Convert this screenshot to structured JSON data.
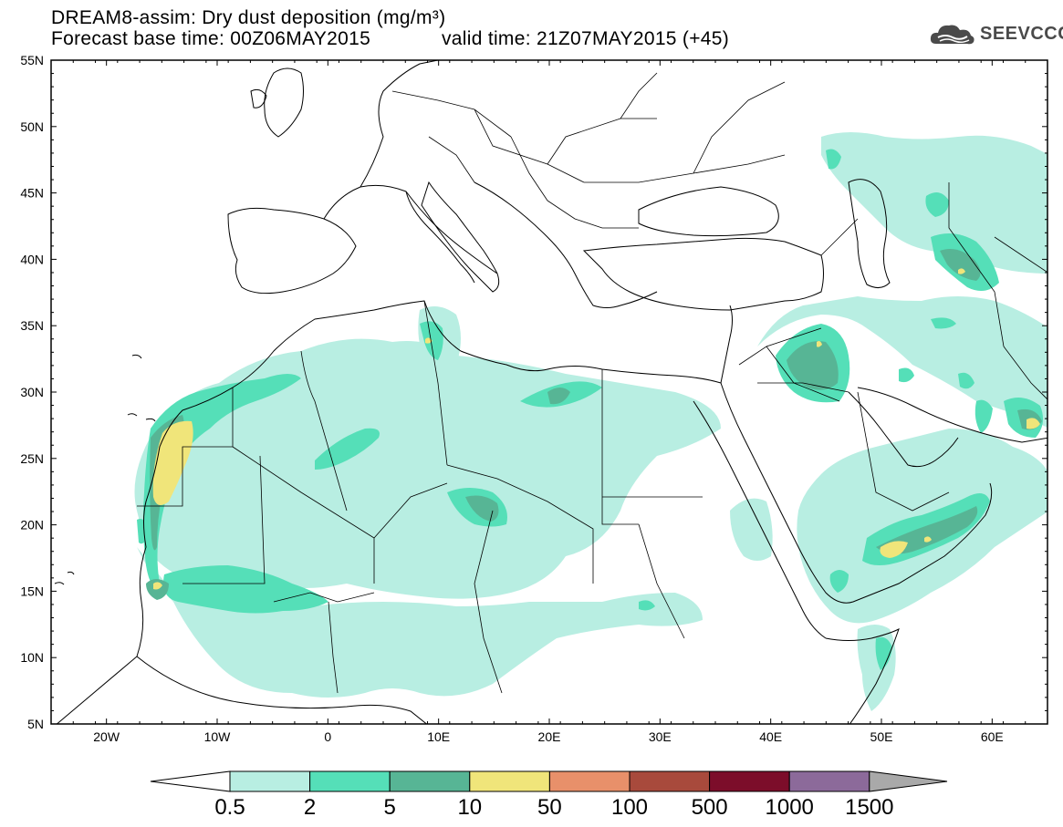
{
  "header": {
    "title": "DREAM8-assim: Dry dust deposition (mg/m³)",
    "base_time": "Forecast base time: 00Z06MAY2015",
    "valid_time": "valid time: 21Z07MAY2015 (+45)"
  },
  "logo": {
    "text": "SEEVCCC",
    "icon": "cloud-icon"
  },
  "axes": {
    "lat_labels": [
      "55N",
      "50N",
      "45N",
      "40N",
      "35N",
      "30N",
      "25N",
      "20N",
      "15N",
      "10N",
      "5N"
    ],
    "lon_labels": [
      "20W",
      "10W",
      "0",
      "10E",
      "20E",
      "30E",
      "40E",
      "50E",
      "60E"
    ],
    "lat_range": [
      5,
      55
    ],
    "lon_range": [
      -25,
      65
    ]
  },
  "colorbar": {
    "labels": [
      "0.5",
      "2",
      "5",
      "10",
      "50",
      "100",
      "500",
      "1000",
      "1500"
    ],
    "colors": [
      "#b8eee2",
      "#55dfb8",
      "#57b595",
      "#f0e57a",
      "#e8906a",
      "#a84a3c",
      "#7c0d2a",
      "#8c6a9a",
      "#a9a9a9"
    ]
  },
  "colors": {
    "coast": "#000000",
    "border": "#000000"
  }
}
